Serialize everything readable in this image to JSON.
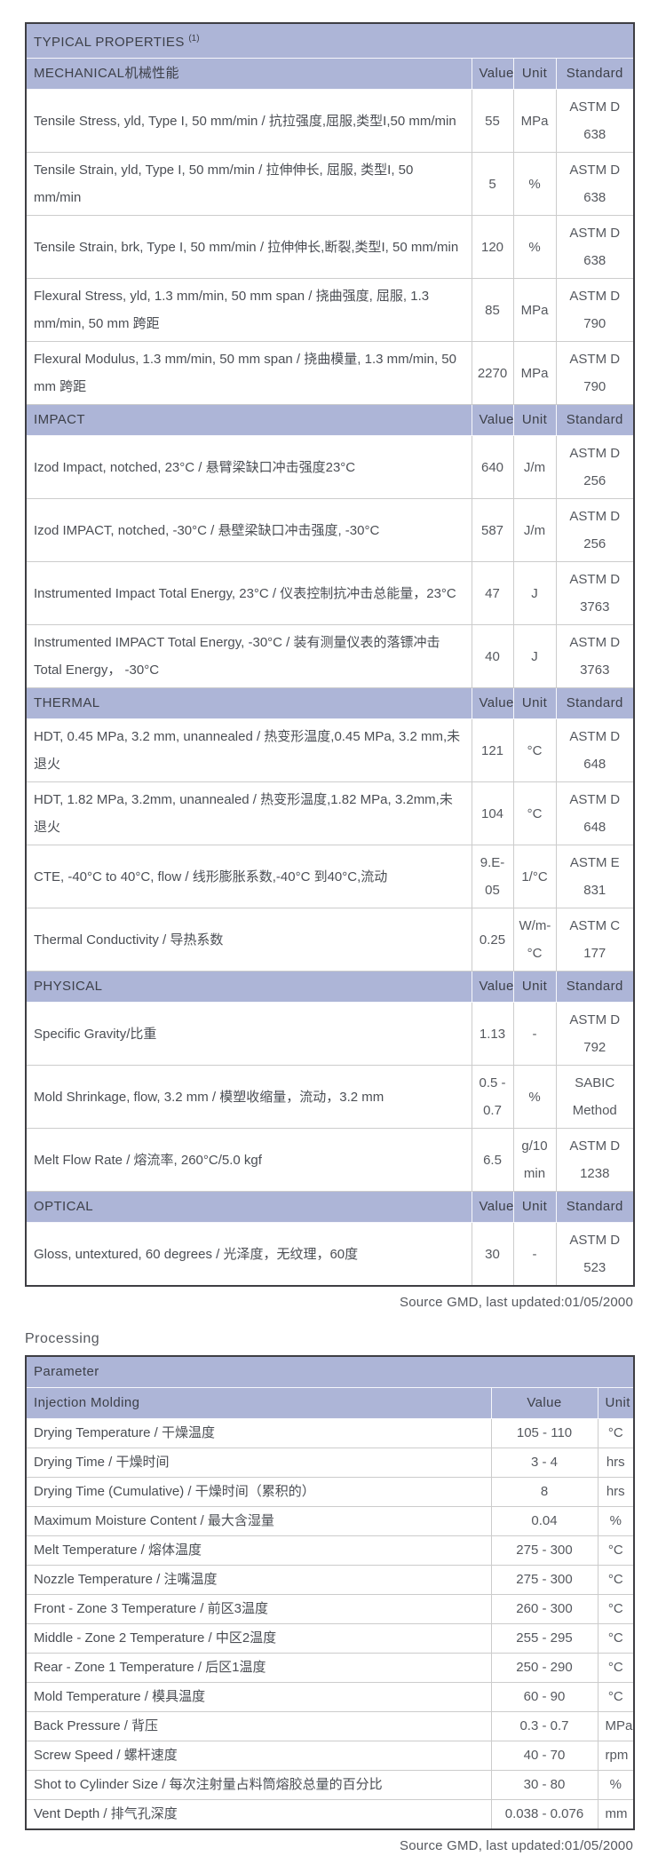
{
  "colors": {
    "header_bg": "#adb5d7",
    "header_text": "#3d4049",
    "body_text": "#55585e",
    "outer_border": "#3e3e43",
    "grid_border": "#cccccc"
  },
  "properties_table": {
    "title": "TYPICAL PROPERTIES",
    "title_superscript": "(1)",
    "columns": [
      "Value",
      "Unit",
      "Standard"
    ],
    "sections": [
      {
        "name": "MECHANICAL机械性能",
        "rows": [
          {
            "property": "Tensile Stress, yld, Type I, 50 mm/min / 抗拉强度,屈服,类型I,50 mm/min",
            "value": "55",
            "unit": "MPa",
            "standard": "ASTM D 638"
          },
          {
            "property": "Tensile Strain, yld, Type I, 50 mm/min / 拉伸伸长, 屈服, 类型I, 50 mm/min",
            "value": "5",
            "unit": "%",
            "standard": "ASTM D 638"
          },
          {
            "property": "Tensile Strain, brk, Type I, 50 mm/min / 拉伸伸长,断裂,类型I, 50 mm/min",
            "value": "120",
            "unit": "%",
            "standard": "ASTM D 638"
          },
          {
            "property": "Flexural Stress, yld, 1.3 mm/min, 50 mm span / 挠曲强度, 屈服, 1.3 mm/min, 50 mm 跨距",
            "value": "85",
            "unit": "MPa",
            "standard": "ASTM D 790"
          },
          {
            "property": "Flexural Modulus, 1.3 mm/min, 50 mm span / 挠曲模量, 1.3 mm/min, 50 mm 跨距",
            "value": "2270",
            "unit": "MPa",
            "standard": "ASTM D 790"
          }
        ]
      },
      {
        "name": "IMPACT",
        "rows": [
          {
            "property": "Izod Impact, notched, 23°C / 悬臂梁缺口冲击强度23°C",
            "value": "640",
            "unit": "J/m",
            "standard": "ASTM D 256"
          },
          {
            "property": "Izod IMPACT, notched, -30°C / 悬壁梁缺口冲击强度, -30°C",
            "value": "587",
            "unit": "J/m",
            "standard": "ASTM D 256"
          },
          {
            "property": "Instrumented Impact Total Energy, 23°C / 仪表控制抗冲击总能量，23°C",
            "value": "47",
            "unit": "J",
            "standard": "ASTM D 3763"
          },
          {
            "property": "Instrumented IMPACT Total Energy, -30°C / 装有测量仪表的落镖冲击Total Energy， -30°C",
            "value": "40",
            "unit": "J",
            "standard": "ASTM D 3763"
          }
        ]
      },
      {
        "name": "THERMAL",
        "rows": [
          {
            "property": "HDT, 0.45 MPa, 3.2 mm, unannealed / 热变形温度,0.45 MPa, 3.2 mm,未退火",
            "value": "121",
            "unit": "°C",
            "standard": "ASTM D 648"
          },
          {
            "property": "HDT, 1.82 MPa, 3.2mm, unannealed / 热变形温度,1.82 MPa, 3.2mm,未退火",
            "value": "104",
            "unit": "°C",
            "standard": "ASTM D 648"
          },
          {
            "property": "CTE, -40°C to 40°C, flow / 线形膨胀系数,-40°C 到40°C,流动",
            "value": "9.E-05",
            "unit": "1/°C",
            "standard": "ASTM E 831"
          },
          {
            "property": "Thermal Conductivity / 导热系数",
            "value": "0.25",
            "unit": "W/m-°C",
            "standard": "ASTM C 177"
          }
        ]
      },
      {
        "name": "PHYSICAL",
        "rows": [
          {
            "property": "Specific Gravity/比重",
            "value": "1.13",
            "unit": "-",
            "standard": "ASTM D 792"
          },
          {
            "property": "Mold Shrinkage, flow, 3.2 mm / 模塑收缩量，流动，3.2 mm",
            "value": "0.5 - 0.7",
            "unit": "%",
            "standard": "SABIC Method"
          },
          {
            "property": "Melt Flow Rate / 熔流率, 260°C/5.0 kgf",
            "value": "6.5",
            "unit": "g/10 min",
            "standard": "ASTM D 1238"
          }
        ]
      },
      {
        "name": "OPTICAL",
        "rows": [
          {
            "property": "Gloss, untextured, 60 degrees / 光泽度，无纹理，60度",
            "value": "30",
            "unit": "-",
            "standard": "ASTM D 523"
          }
        ]
      }
    ],
    "source_note": "Source GMD, last updated:01/05/2000"
  },
  "processing": {
    "heading": "Processing",
    "table": {
      "header": "Parameter",
      "subheader": "Injection Molding",
      "columns": [
        "Value",
        "Unit"
      ],
      "rows": [
        {
          "parameter": "Drying Temperature / 干燥温度",
          "value": "105 - 110",
          "unit": "°C"
        },
        {
          "parameter": "Drying Time / 干燥时间",
          "value": "3 - 4",
          "unit": "hrs"
        },
        {
          "parameter": "Drying Time (Cumulative) / 干燥时间（累积的）",
          "value": "8",
          "unit": "hrs"
        },
        {
          "parameter": "Maximum Moisture Content / 最大含湿量",
          "value": "0.04",
          "unit": "%"
        },
        {
          "parameter": "Melt Temperature / 熔体温度",
          "value": "275 - 300",
          "unit": "°C"
        },
        {
          "parameter": "Nozzle Temperature / 注嘴温度",
          "value": "275 - 300",
          "unit": "°C"
        },
        {
          "parameter": "Front - Zone 3 Temperature / 前区3温度",
          "value": "260 - 300",
          "unit": "°C"
        },
        {
          "parameter": "Middle - Zone 2 Temperature / 中区2温度",
          "value": "255 - 295",
          "unit": "°C"
        },
        {
          "parameter": "Rear - Zone 1 Temperature / 后区1温度",
          "value": "250 - 290",
          "unit": "°C"
        },
        {
          "parameter": "Mold Temperature / 模具温度",
          "value": "60 - 90",
          "unit": "°C"
        },
        {
          "parameter": "Back Pressure / 背压",
          "value": "0.3 - 0.7",
          "unit": "MPa"
        },
        {
          "parameter": "Screw Speed / 螺杆速度",
          "value": "40 - 70",
          "unit": "rpm"
        },
        {
          "parameter": "Shot to Cylinder Size / 每次注射量占料筒熔胶总量的百分比",
          "value": "30 - 80",
          "unit": "%"
        },
        {
          "parameter": "Vent Depth / 排气孔深度",
          "value": "0.038 - 0.076",
          "unit": "mm"
        }
      ]
    },
    "source_note": "Source GMD, last updated:01/05/2000"
  }
}
